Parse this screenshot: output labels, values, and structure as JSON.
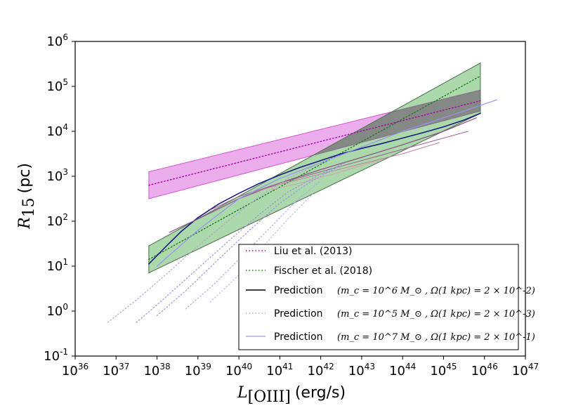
{
  "chart_data": {
    "type": "line",
    "title": "",
    "xlabel": {
      "symbol": "L",
      "subscript": "[OIII]",
      "unit": "(erg/s)"
    },
    "ylabel": {
      "symbol": "R",
      "subscript": "15",
      "unit": "(pc)"
    },
    "xlim": [
      36,
      47
    ],
    "ylim": [
      -1,
      6
    ],
    "xscale": "log",
    "yscale": "log",
    "grid": false,
    "legend_position": "lower-right",
    "x_ticks": [
      {
        "base": "10",
        "exp": "36"
      },
      {
        "base": "10",
        "exp": "37"
      },
      {
        "base": "10",
        "exp": "38"
      },
      {
        "base": "10",
        "exp": "39"
      },
      {
        "base": "10",
        "exp": "40"
      },
      {
        "base": "10",
        "exp": "41"
      },
      {
        "base": "10",
        "exp": "42"
      },
      {
        "base": "10",
        "exp": "43"
      },
      {
        "base": "10",
        "exp": "44"
      },
      {
        "base": "10",
        "exp": "45"
      },
      {
        "base": "10",
        "exp": "46"
      },
      {
        "base": "10",
        "exp": "47"
      }
    ],
    "y_ticks": [
      {
        "base": "10",
        "exp": "-1"
      },
      {
        "base": "10",
        "exp": "0"
      },
      {
        "base": "10",
        "exp": "1"
      },
      {
        "base": "10",
        "exp": "2"
      },
      {
        "base": "10",
        "exp": "3"
      },
      {
        "base": "10",
        "exp": "4"
      },
      {
        "base": "10",
        "exp": "5"
      },
      {
        "base": "10",
        "exp": "6"
      }
    ],
    "bands": [
      {
        "name": "Liu et al. (2013) band",
        "color": "#cc33cc",
        "opacity": 0.4,
        "x": [
          37.8,
          45.9
        ],
        "upper": [
          3.1,
          4.92
        ],
        "lower": [
          2.5,
          4.45
        ]
      },
      {
        "name": "Fischer et al. (2018) band",
        "color": "#2ca02c",
        "opacity": 0.4,
        "x": [
          37.8,
          45.9
        ],
        "upper": [
          1.45,
          5.52
        ],
        "lower": [
          0.85,
          4.4
        ]
      },
      {
        "name": "overlap region",
        "color": "#606060",
        "opacity": 0.0,
        "x": [
          37.8,
          45.9
        ],
        "upper": [
          1.45,
          5.52
        ],
        "lower": [
          0.85,
          4.4
        ]
      }
    ],
    "series": [
      {
        "name": "Liu et al. (2013)",
        "style": "dotted",
        "color": "#aa00aa",
        "width": 1.4,
        "x": [
          37.8,
          45.9
        ],
        "y": [
          2.8,
          4.68
        ]
      },
      {
        "name": "Fischer et al. (2018)",
        "style": "dotted",
        "color": "#1a7a1a",
        "width": 1.4,
        "x": [
          37.8,
          45.9
        ],
        "y": [
          1.15,
          5.23
        ]
      },
      {
        "name": "Prediction main",
        "style": "solid",
        "color": "#1a1a80",
        "width": 1.6,
        "x": [
          37.8,
          38.2,
          38.6,
          39.0,
          39.5,
          40.0,
          40.5,
          41.0,
          41.5,
          42.0,
          42.5,
          43.0,
          43.5,
          44.0,
          44.5,
          45.0,
          45.5,
          45.9
        ],
        "y": [
          1.05,
          1.42,
          1.78,
          2.08,
          2.38,
          2.62,
          2.84,
          3.03,
          3.2,
          3.35,
          3.5,
          3.62,
          3.73,
          3.85,
          3.97,
          4.1,
          4.25,
          4.4
        ]
      },
      {
        "name": "Prediction variant 1",
        "style": "solid",
        "color": "#8a4a8a",
        "width": 1.2,
        "x": [
          38.3,
          39.0,
          40.0,
          41.0,
          42.0,
          43.0,
          44.0,
          45.0,
          45.8
        ],
        "y": [
          1.75,
          2.05,
          2.5,
          2.85,
          3.15,
          3.42,
          3.7,
          4.0,
          4.3
        ]
      },
      {
        "name": "Prediction variant 2",
        "style": "solid",
        "color": "#a06090",
        "width": 1.0,
        "x": [
          39.3,
          40.0,
          41.0,
          42.0,
          43.0,
          44.0,
          45.0,
          45.6
        ],
        "y": [
          2.25,
          2.55,
          2.85,
          3.1,
          3.35,
          3.6,
          3.85,
          4.0
        ]
      },
      {
        "name": "Prediction variant 3",
        "style": "solid",
        "color": "#c080a0",
        "width": 1.0,
        "x": [
          40.2,
          41.0,
          42.0,
          43.0,
          44.0,
          44.9
        ],
        "y": [
          2.6,
          2.82,
          3.05,
          3.28,
          3.5,
          3.75
        ]
      },
      {
        "name": "Prediction variant 4",
        "style": "solid",
        "color": "#d0a0b0",
        "width": 1.0,
        "x": [
          40.8,
          41.5,
          42.5,
          43.4
        ],
        "y": [
          2.7,
          2.85,
          3.1,
          3.35
        ]
      },
      {
        "name": "Prediction (m_c = 10^7 M_sun) long",
        "style": "solid",
        "color": "#9a90ee",
        "width": 1.2,
        "x": [
          38.0,
          39.0,
          40.0,
          41.0,
          42.0,
          43.0,
          44.0,
          45.0,
          46.3
        ],
        "y": [
          1.0,
          1.8,
          2.5,
          2.95,
          3.3,
          3.65,
          4.0,
          4.3,
          4.7
        ]
      },
      {
        "name": "Prediction (m_c = 10^5 M_sun) dotted 1",
        "style": "dotted",
        "color": "#b8a0d8",
        "width": 1.2,
        "x": [
          36.8,
          37.5,
          38.2,
          39.0,
          39.8,
          40.5,
          41.2,
          42.0
        ],
        "y": [
          -0.25,
          0.25,
          0.8,
          1.45,
          2.05,
          2.55,
          2.95,
          3.3
        ]
      },
      {
        "name": "Prediction (m_c = 10^5 M_sun) dotted 2",
        "style": "dotted",
        "color": "#a090e0",
        "width": 1.2,
        "x": [
          37.5,
          38.2,
          39.0,
          39.8,
          40.5,
          41.2,
          42.0,
          42.6
        ],
        "y": [
          -0.25,
          0.3,
          0.95,
          1.6,
          2.15,
          2.65,
          3.05,
          3.3
        ]
      },
      {
        "name": "Prediction (m_c = 10^5 M_sun) dotted 3",
        "style": "dotted",
        "color": "#9a90ee",
        "width": 1.2,
        "x": [
          38.0,
          38.7,
          39.5,
          40.2,
          41.0,
          41.7,
          42.4
        ],
        "y": [
          -0.1,
          0.45,
          1.15,
          1.75,
          2.4,
          2.85,
          3.2
        ]
      },
      {
        "name": "Prediction (m_c = 10^5 M_sun) dotted 4",
        "style": "dotted",
        "color": "#b0a8f0",
        "width": 1.2,
        "x": [
          38.7,
          39.4,
          40.0,
          40.7,
          41.4,
          42.0
        ],
        "y": [
          0.05,
          0.6,
          1.15,
          1.8,
          2.45,
          2.9
        ]
      },
      {
        "name": "Prediction (m_c = 10^5 M_sun) dotted 5",
        "style": "dotted",
        "color": "#c0b8f4",
        "width": 1.2,
        "x": [
          39.3,
          40.0,
          40.6,
          41.2,
          41.8
        ],
        "y": [
          0.2,
          0.8,
          1.45,
          2.05,
          2.6
        ]
      }
    ],
    "legend": [
      {
        "label": "Liu et al. (2013)",
        "style": "dotted",
        "color": "#aa00aa"
      },
      {
        "label": "Fischer et al. (2018)",
        "style": "dotted",
        "color": "#1a7a1a"
      },
      {
        "label": "Prediction",
        "math": "(m_c = 10^6 M_⊙ , Ω(1 kpc) = 2 × 10^-2)",
        "style": "solid",
        "color": "#000000"
      },
      {
        "label": "Prediction",
        "math": "(m_c = 10^5 M_⊙ , Ω(1 kpc) = 2 × 10^-3)",
        "style": "dotted",
        "color": "#d0a0c0"
      },
      {
        "label": "Prediction",
        "math": "(m_c = 10^7 M_⊙ , Ω(1 kpc) = 2 × 10^-1)",
        "style": "solid",
        "color": "#b0a8f0"
      }
    ]
  }
}
